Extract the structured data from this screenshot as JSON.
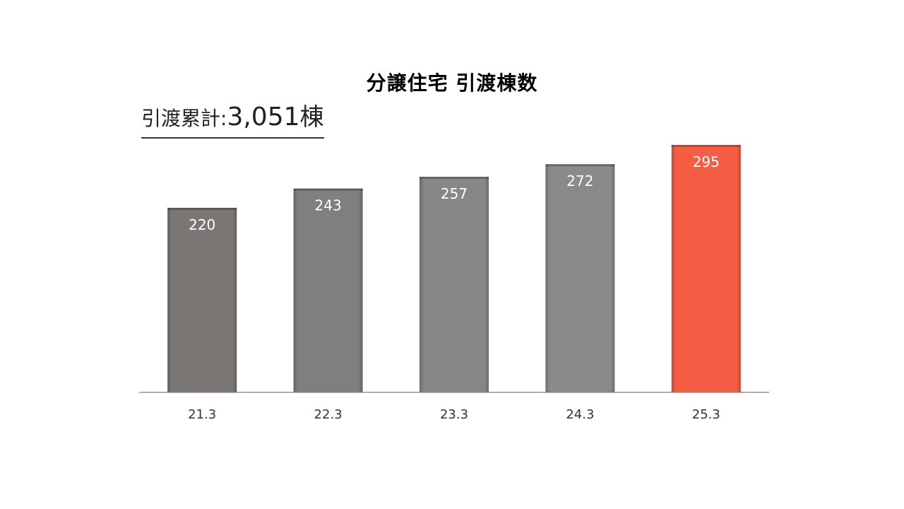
{
  "chart_data": {
    "type": "bar",
    "title": "分譲住宅 引渡棟数",
    "categories": [
      "21.3",
      "22.3",
      "23.3",
      "24.3",
      "25.3"
    ],
    "values": [
      220,
      243,
      257,
      272,
      295
    ],
    "data_labels": [
      "220",
      "243",
      "257",
      "272",
      "295"
    ],
    "xlabel": "",
    "ylabel": "",
    "ylim": [
      0,
      300
    ],
    "grid": false,
    "legend": "none",
    "colors": [
      "#7a7674",
      "#7f7f7f",
      "#878787",
      "#8a8a8a",
      "#f55e45"
    ]
  },
  "cumulative": {
    "label": "引渡累計:",
    "value": "3,051",
    "unit": "棟"
  }
}
